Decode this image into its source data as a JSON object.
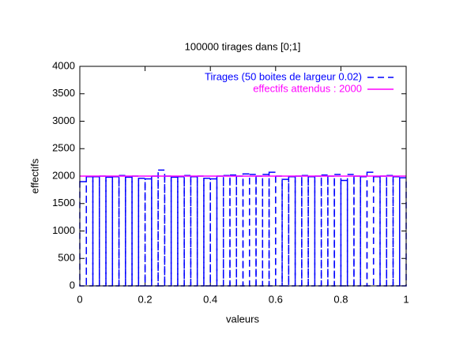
{
  "chart_data": {
    "type": "histogram",
    "title": "100000 tirages dans [0;1]",
    "xlabel": "valeurs",
    "ylabel": "effectifs",
    "bins": [
      0,
      0.02,
      0.04,
      0.06,
      0.08,
      0.1,
      0.12,
      0.14,
      0.16,
      0.18,
      0.2,
      0.22,
      0.24,
      0.26,
      0.28,
      0.3,
      0.32,
      0.34,
      0.36,
      0.38,
      0.4,
      0.42,
      0.44,
      0.46,
      0.48,
      0.5,
      0.52,
      0.54,
      0.56,
      0.58,
      0.6,
      0.62,
      0.64,
      0.66,
      0.68,
      0.7,
      0.72,
      0.74,
      0.76,
      0.78,
      0.8,
      0.82,
      0.84,
      0.86,
      0.88,
      0.9,
      0.92,
      0.94,
      0.96,
      0.98,
      1
    ],
    "series": [
      {
        "name": "Tirages (50 boites de largeur 0.02)",
        "color": "#0000ff",
        "values": [
          1900,
          1990,
          1990,
          2000,
          1980,
          1990,
          2010,
          1980,
          2000,
          1960,
          1950,
          2000,
          2110,
          2000,
          1980,
          1990,
          2010,
          1990,
          2000,
          1960,
          1950,
          2000,
          2010,
          2020,
          2000,
          2040,
          2030,
          2000,
          2030,
          2070,
          2000,
          1940,
          1990,
          2000,
          2010,
          1990,
          2000,
          2020,
          2000,
          2030,
          1920,
          2030,
          2000,
          1990,
          2070,
          1990,
          2000,
          2010,
          1990,
          1970
        ]
      },
      {
        "name": "effectifs attendus : 2000",
        "color": "#ff00ff",
        "value": 2000
      }
    ],
    "xlim": [
      0,
      1
    ],
    "xticks": [
      0,
      0.2,
      0.4,
      0.6,
      0.8,
      1
    ],
    "ylim": [
      0,
      4000
    ],
    "yticks": [
      0,
      500,
      1000,
      1500,
      2000,
      2500,
      3000,
      3500,
      4000
    ],
    "legend": "top-right"
  }
}
